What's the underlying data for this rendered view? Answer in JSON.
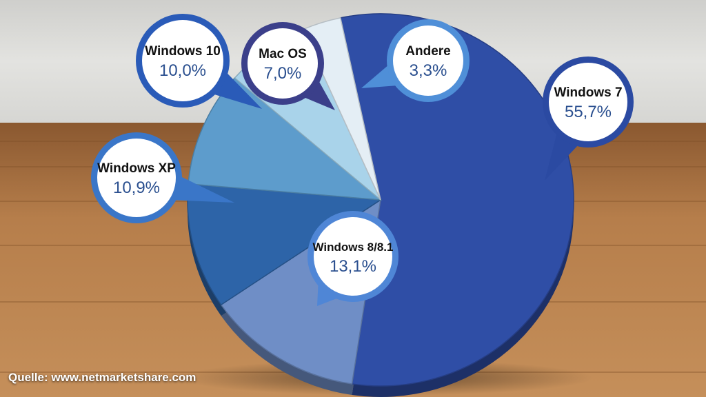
{
  "colors": {
    "wall": "#d9d9d6",
    "floor": "#b37b48",
    "callout_fill": "#ffffff",
    "callout_text_name": "#111111",
    "callout_text_value": "#2a4f8f"
  },
  "source": "Quelle: www.netmarketshare.com",
  "chart_data": {
    "type": "pie",
    "title": "",
    "slices": [
      {
        "label": "Windows 7",
        "value_text": "55,7%",
        "value": 55.7,
        "color": "#2f4ea6",
        "ring": "#2b4aa2"
      },
      {
        "label": "Windows 8/8.1",
        "value_text": "13,1%",
        "value": 13.1,
        "color": "#6f8ec6",
        "ring": "#4f86d6"
      },
      {
        "label": "Windows XP",
        "value_text": "10,9%",
        "value": 10.9,
        "color": "#2d64a8",
        "ring": "#3a76c8"
      },
      {
        "label": "Windows 10",
        "value_text": "10,0%",
        "value": 10.0,
        "color": "#5d9ccc",
        "ring": "#2a5bb8"
      },
      {
        "label": "Mac OS",
        "value_text": "7,0%",
        "value": 7.0,
        "color": "#a9d3ea",
        "ring": "#3b3f8a"
      },
      {
        "label": "Andere",
        "value_text": "3,3%",
        "value": 3.3,
        "color": "#e4eef5",
        "ring": "#4f8fd8"
      }
    ]
  }
}
